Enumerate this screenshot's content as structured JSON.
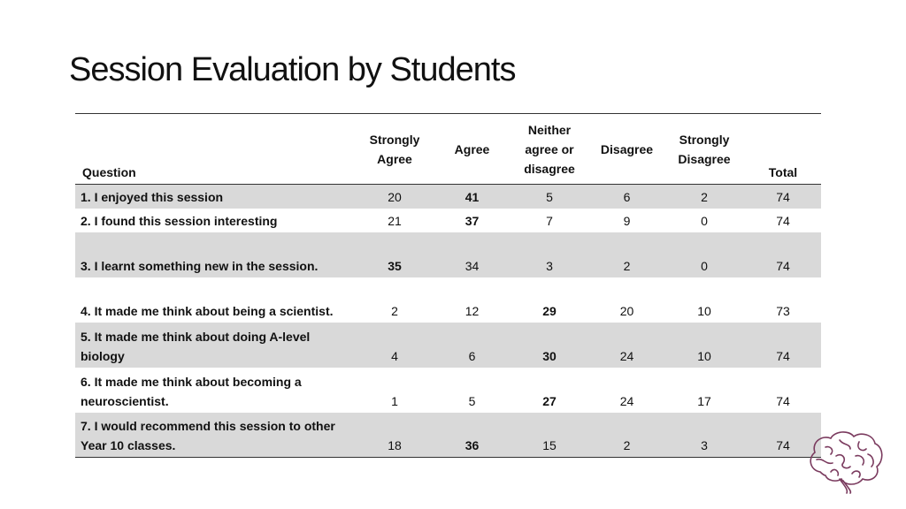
{
  "title": "Session Evaluation by Students",
  "table": {
    "headers": {
      "question": "Question",
      "strongly_agree": "Strongly Agree",
      "agree": "Agree",
      "neither": "Neither agree or disagree",
      "disagree": "Disagree",
      "strongly_disagree": "Strongly Disagree",
      "total": "Total"
    },
    "rows": [
      {
        "question": "1. I enjoyed this session",
        "values": [
          "20",
          "41",
          "5",
          "6",
          "2",
          "74"
        ],
        "bold_index": 1,
        "shaded": true,
        "height": 27
      },
      {
        "question": "2. I found this session interesting",
        "values": [
          "21",
          "37",
          "7",
          "9",
          "0",
          "74"
        ],
        "bold_index": 1,
        "shaded": false,
        "height": 27
      },
      {
        "question": "3. I learnt something new in the session.",
        "values": [
          "35",
          "34",
          "3",
          "2",
          "0",
          "74"
        ],
        "bold_index": 0,
        "shaded": true,
        "height": 51
      },
      {
        "question": "4. It made me think about being a scientist.",
        "values": [
          "2",
          "12",
          "29",
          "20",
          "10",
          "73"
        ],
        "bold_index": 2,
        "shaded": false,
        "height": 51
      },
      {
        "question": "5. It made me think about doing A-level biology",
        "values": [
          "4",
          "6",
          "30",
          "24",
          "10",
          "74"
        ],
        "bold_index": 2,
        "shaded": true,
        "height": 51
      },
      {
        "question": "6. It made me think about becoming a neuroscientist.",
        "values": [
          "1",
          "5",
          "27",
          "24",
          "17",
          "74"
        ],
        "bold_index": 2,
        "shaded": false,
        "height": 51
      },
      {
        "question": "7. I would recommend this session to other Year 10 classes.",
        "values": [
          "18",
          "36",
          "15",
          "2",
          "3",
          "74"
        ],
        "bold_index": 1,
        "shaded": true,
        "height": 51
      }
    ]
  },
  "logo": {
    "icon": "brain-icon",
    "color": "#7a3a5e"
  }
}
